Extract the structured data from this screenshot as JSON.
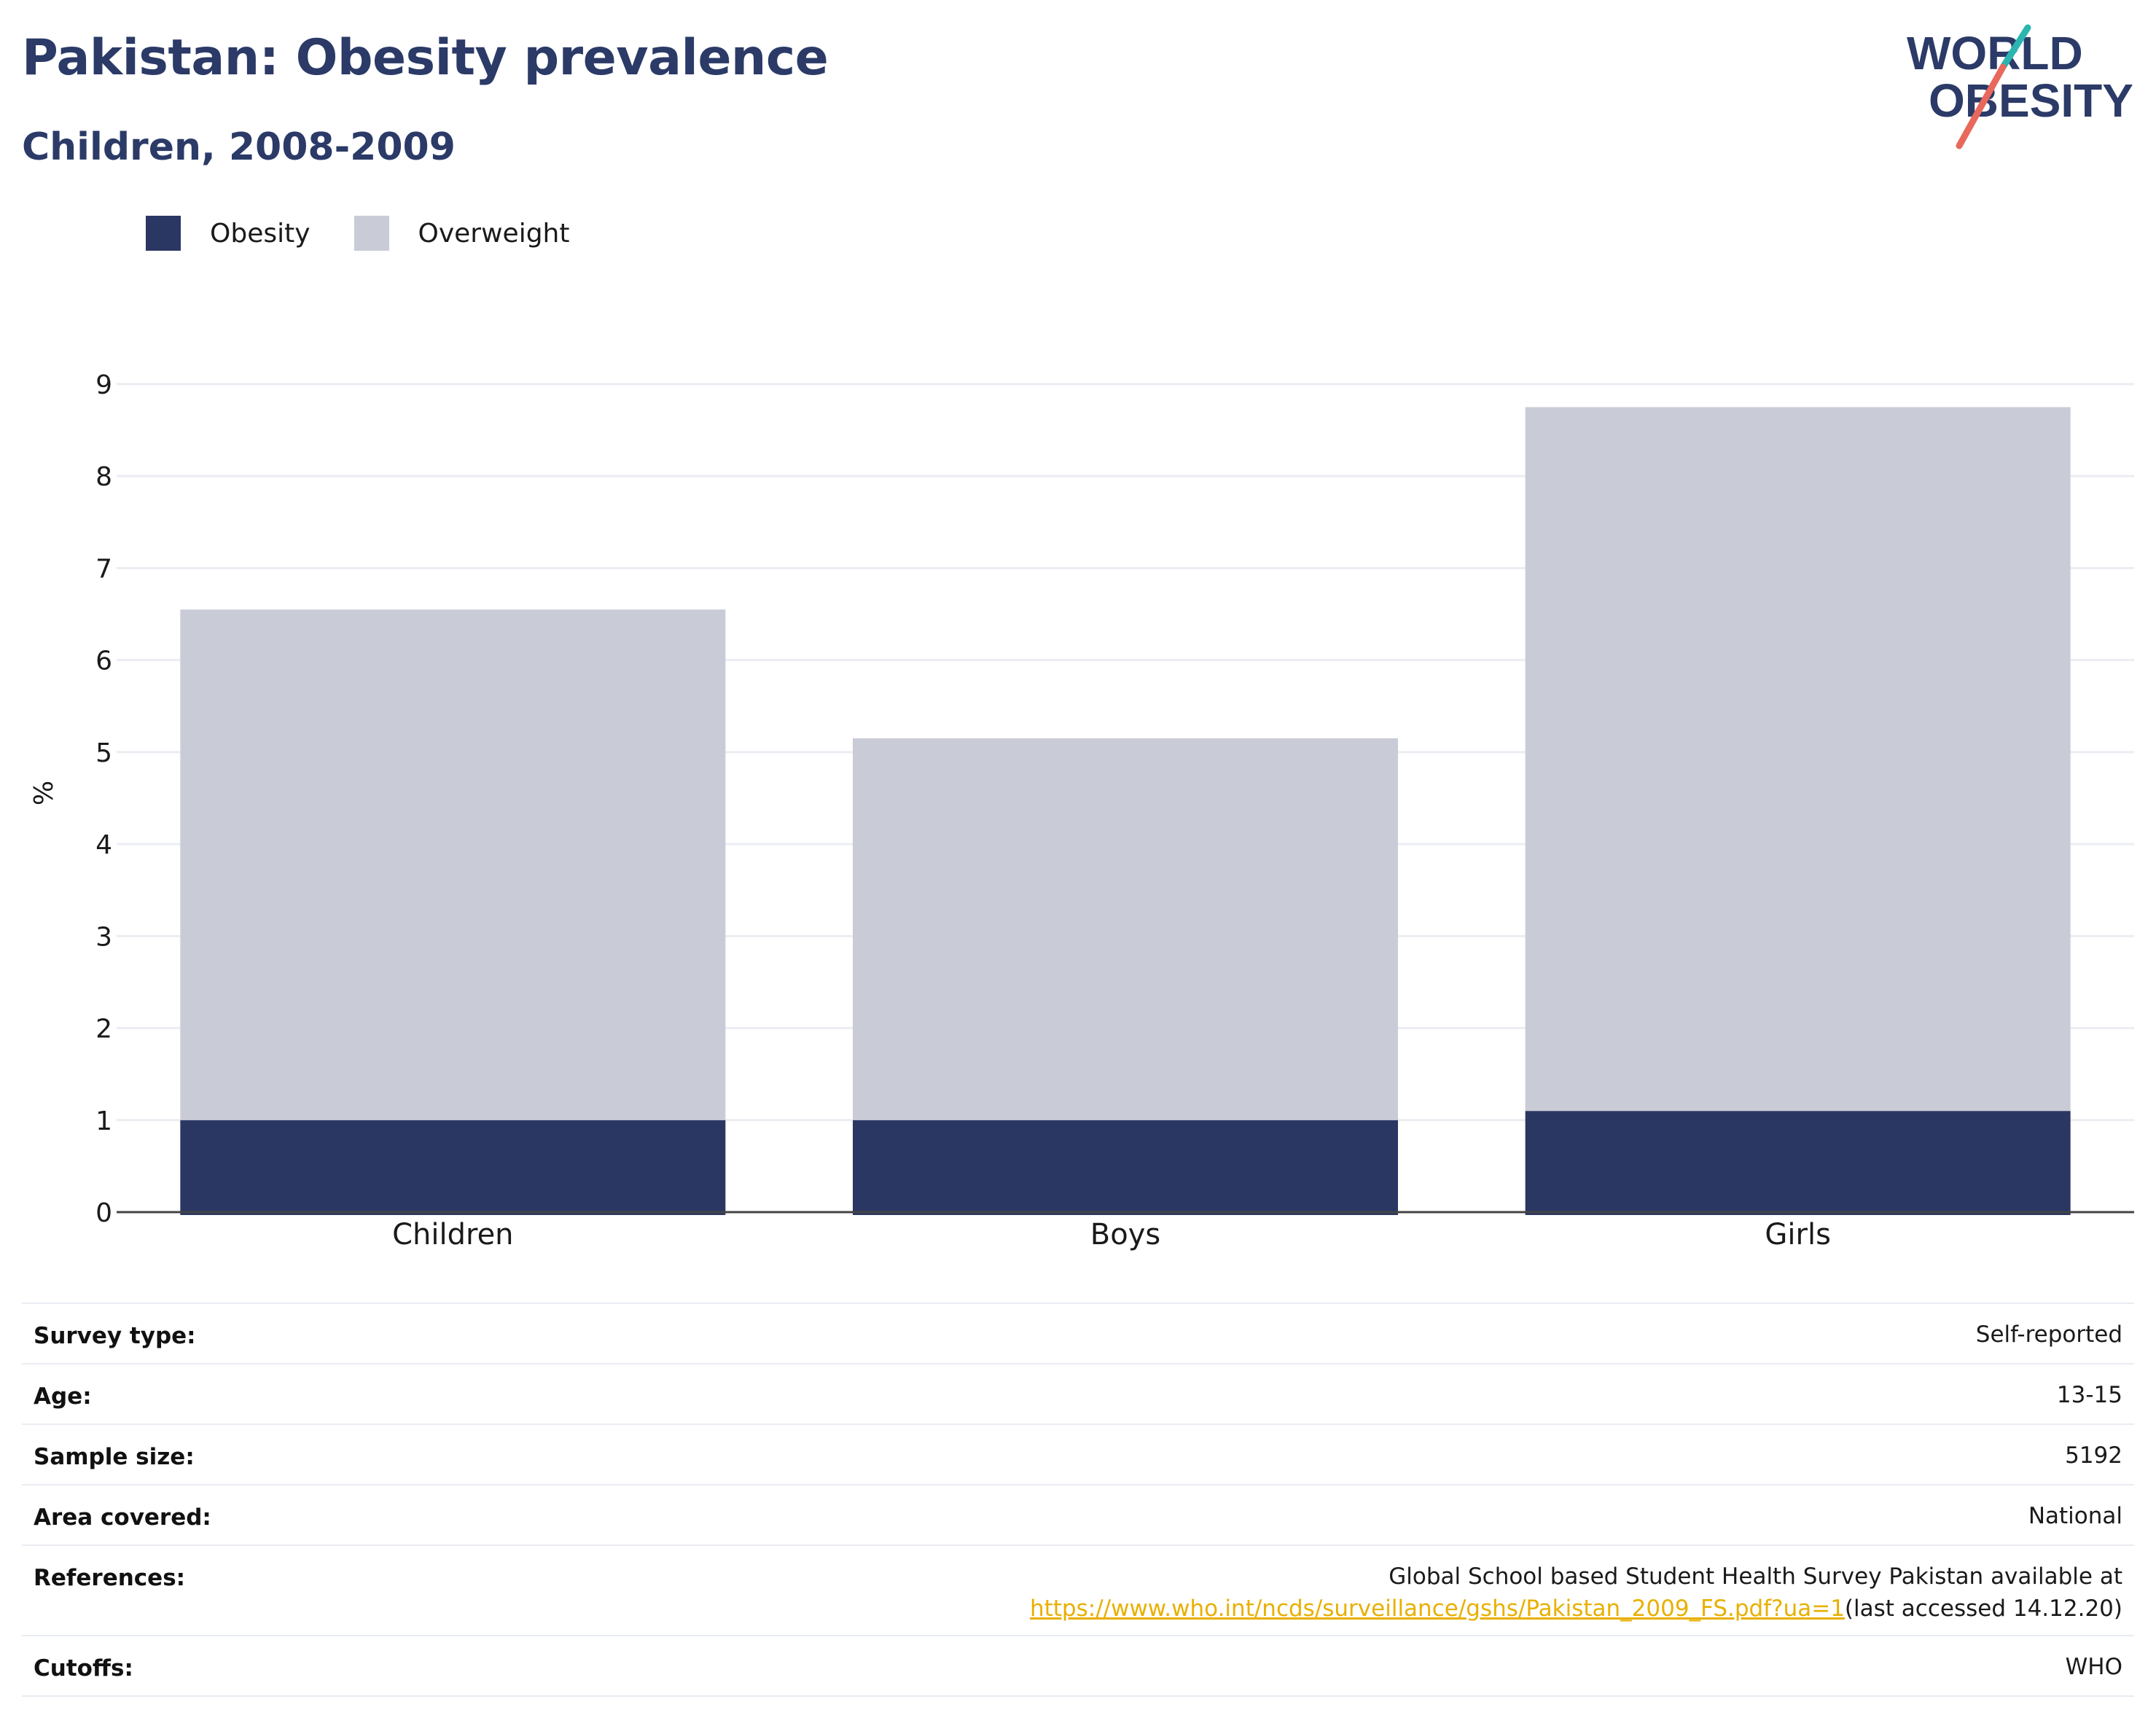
{
  "header": {
    "title": "Pakistan: Obesity prevalence",
    "subtitle": "Children, 2008-2009"
  },
  "logo": {
    "line1": "WORLD",
    "line2": "OBESITY",
    "colors": {
      "text": "#2b3a67",
      "slash_top": "#2bb5b0",
      "slash_bottom": "#e8685c"
    }
  },
  "legend": [
    {
      "label": "Obesity",
      "color": "#2b3763"
    },
    {
      "label": "Overweight",
      "color": "#c9cbd6"
    }
  ],
  "chart_data": {
    "type": "bar",
    "stacked": true,
    "categories": [
      "Children",
      "Boys",
      "Girls"
    ],
    "series": [
      {
        "name": "Obesity",
        "values": [
          1.0,
          1.0,
          1.1
        ],
        "color": "#2b3763"
      },
      {
        "name": "Overweight",
        "values": [
          5.55,
          4.15,
          7.65
        ],
        "color": "#c9cbd6"
      }
    ],
    "ylabel": "%",
    "xlabel": "",
    "ylim": [
      0,
      9
    ],
    "yticks": [
      0,
      1,
      2,
      3,
      4,
      5,
      6,
      7,
      8,
      9
    ],
    "grid": true,
    "legend_position": "top-left"
  },
  "meta": {
    "survey_type": {
      "label": "Survey type:",
      "value": "Self-reported"
    },
    "age": {
      "label": "Age:",
      "value": "13-15"
    },
    "sample_size": {
      "label": "Sample size:",
      "value": "5192"
    },
    "area": {
      "label": "Area covered:",
      "value": "National"
    },
    "references": {
      "label": "References:",
      "text": "Global School based Student Health Survey Pakistan available at",
      "link": "https://www.who.int/ncds/surveillance/gshs/Pakistan_2009_FS.pdf?ua=1",
      "suffix": "(last accessed 14.12.20)"
    },
    "cutoffs": {
      "label": "Cutoffs:",
      "value": "WHO"
    }
  }
}
